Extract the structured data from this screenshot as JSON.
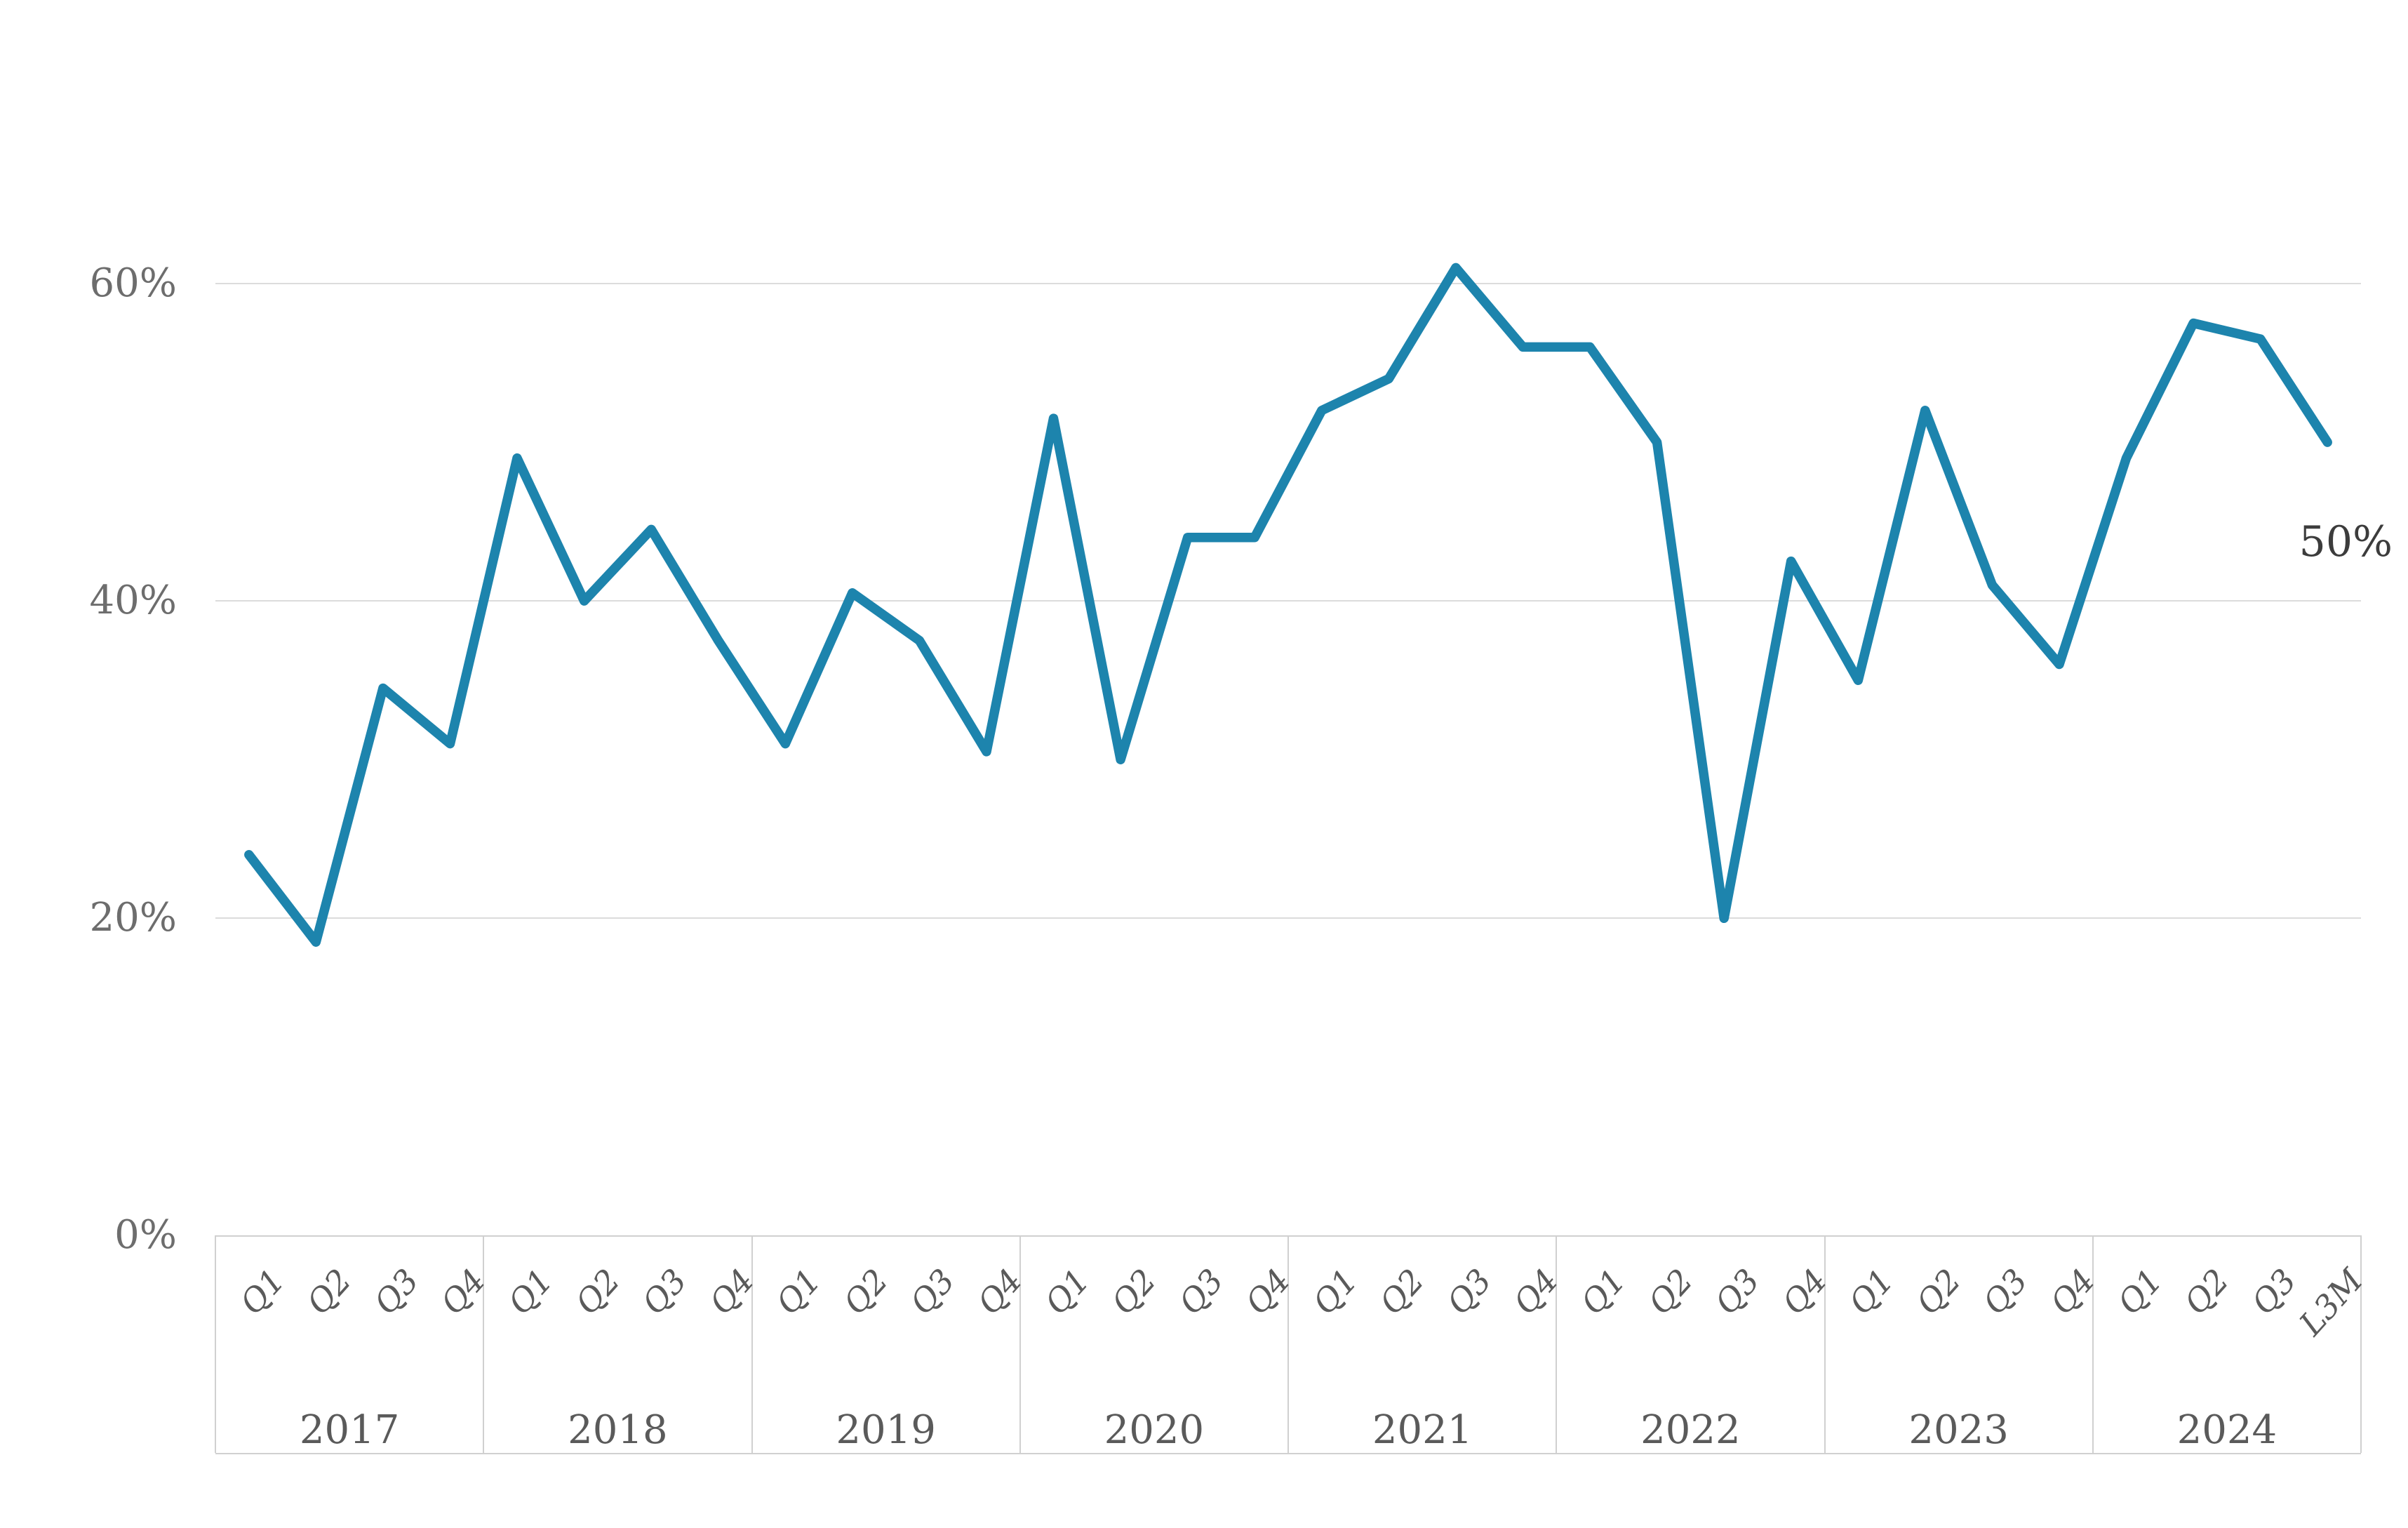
{
  "chart_data": {
    "type": "line",
    "title": "",
    "unit": "%",
    "categories": [
      "2017 Q1",
      "2017 Q2",
      "2017 Q3",
      "2017 Q4",
      "2018 Q1",
      "2018 Q2",
      "2018 Q3",
      "2018 Q4",
      "2019 Q1",
      "2019 Q2",
      "2019 Q3",
      "2019 Q4",
      "2020 Q1",
      "2020 Q2",
      "2020 Q3",
      "2020 Q4",
      "2021 Q1",
      "2021 Q2",
      "2021 Q3",
      "2021 Q4",
      "2022 Q1",
      "2022 Q2",
      "2022 Q3",
      "2022 Q4",
      "2023 Q1",
      "2023 Q2",
      "2023 Q3",
      "2023 Q4",
      "2024 Q1",
      "2024 Q2",
      "2024 Q3",
      "2024 L3M"
    ],
    "values": [
      24,
      18.5,
      34.5,
      31,
      49,
      40,
      44.5,
      37.5,
      31,
      40.5,
      37.5,
      30.5,
      51.5,
      30,
      44,
      44,
      52,
      54,
      61,
      56,
      56,
      50,
      20,
      42.5,
      35,
      52,
      41,
      36,
      49,
      57.5,
      56.5,
      50
    ],
    "x_axis": {
      "years": [
        {
          "label": "2017",
          "quarters": [
            "Q1",
            "Q2",
            "Q3",
            "Q4"
          ]
        },
        {
          "label": "2018",
          "quarters": [
            "Q1",
            "Q2",
            "Q3",
            "Q4"
          ]
        },
        {
          "label": "2019",
          "quarters": [
            "Q1",
            "Q2",
            "Q3",
            "Q4"
          ]
        },
        {
          "label": "2020",
          "quarters": [
            "Q1",
            "Q2",
            "Q3",
            "Q4"
          ]
        },
        {
          "label": "2021",
          "quarters": [
            "Q1",
            "Q2",
            "Q3",
            "Q4"
          ]
        },
        {
          "label": "2022",
          "quarters": [
            "Q1",
            "Q2",
            "Q3",
            "Q4"
          ]
        },
        {
          "label": "2023",
          "quarters": [
            "Q1",
            "Q2",
            "Q3",
            "Q4"
          ]
        },
        {
          "label": "2024",
          "quarters": [
            "Q1",
            "Q2",
            "Q3",
            "L3M"
          ]
        }
      ]
    },
    "y_ticks": [
      {
        "label": "60%",
        "value": 60
      },
      {
        "label": "40%",
        "value": 40
      },
      {
        "label": "20%",
        "value": 20
      },
      {
        "label": "0%",
        "value": 0
      }
    ],
    "ylim": [
      0,
      65
    ],
    "grid": "horizontal",
    "legend": "none",
    "end_label": "50%",
    "colors": {
      "line": "#1d84ad",
      "gridline": "#dcdcdc",
      "table_border": "#d0d0d0",
      "tick_label": "#6d6d6d",
      "axis_label": "#5a5a5a",
      "end_label": "#3c3c3c",
      "background": "#ffffff"
    }
  }
}
